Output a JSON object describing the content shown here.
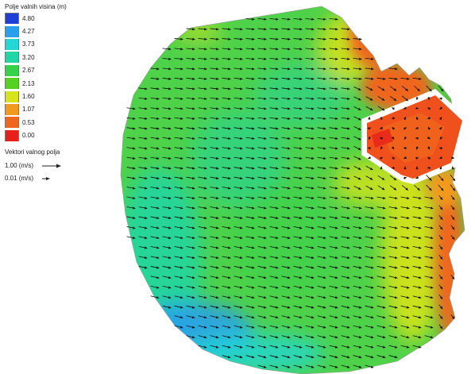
{
  "legend": {
    "title": "Polje valnih visina (m)",
    "items": [
      {
        "label": "4.80",
        "color": "#1f3fd6"
      },
      {
        "label": "4.27",
        "color": "#2aa0ec"
      },
      {
        "label": "3.73",
        "color": "#23d7d6"
      },
      {
        "label": "3.20",
        "color": "#20d6a4"
      },
      {
        "label": "2.67",
        "color": "#35d24a"
      },
      {
        "label": "2.13",
        "color": "#55d21f"
      },
      {
        "label": "1.60",
        "color": "#d7e31b"
      },
      {
        "label": "1.07",
        "color": "#f29a1e"
      },
      {
        "label": "0.53",
        "color": "#f0661c"
      },
      {
        "label": "0.00",
        "color": "#e8201a"
      }
    ]
  },
  "vectors": {
    "title": "Vektori valnog polja",
    "items": [
      {
        "label": "1.00 (m/s)"
      },
      {
        "label": "0.01 (m/s)"
      }
    ]
  },
  "colors": {
    "domain_fill": "#4ed24a",
    "shallow": "#f4501c",
    "deep": "#2aa0ec",
    "arrow": "#111111"
  }
}
